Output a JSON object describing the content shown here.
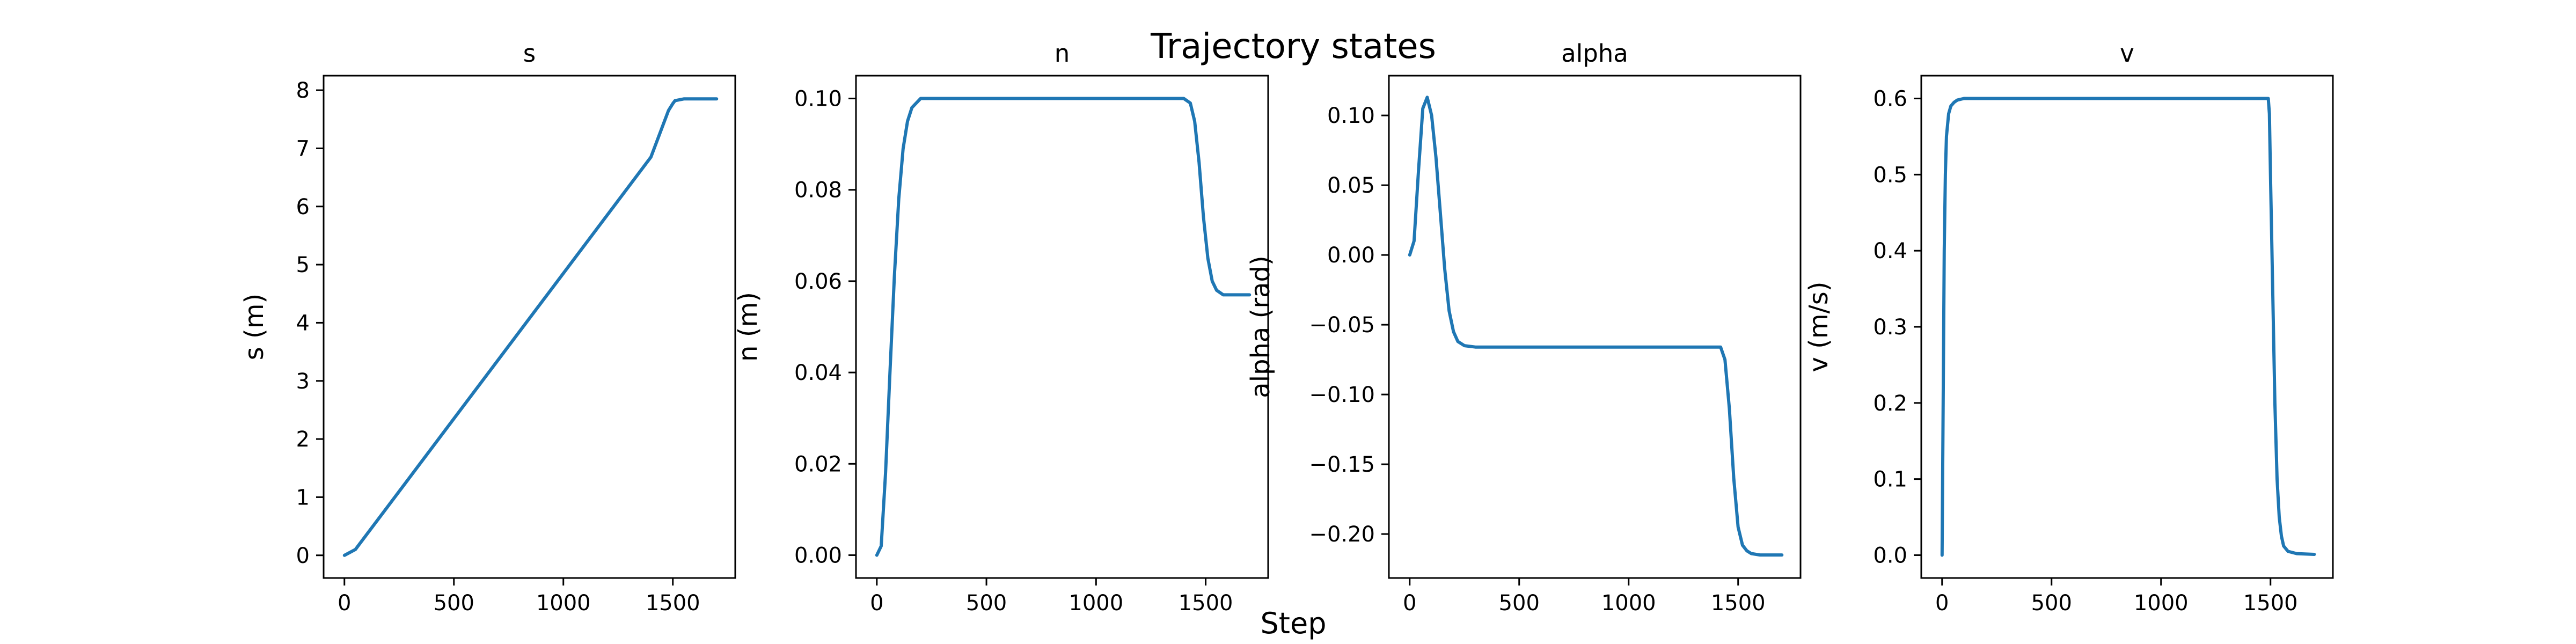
{
  "figure": {
    "suptitle": "Trajectory states",
    "supxlabel": "Step",
    "line_color": "#1f77b4"
  },
  "chart_data": [
    {
      "type": "line",
      "title": "s",
      "xlabel": "",
      "ylabel": "s (m)",
      "xlim": [
        -95,
        1785
      ],
      "ylim": [
        -0.39,
        8.25
      ],
      "xticks": [
        0,
        500,
        1000,
        1500
      ],
      "yticks": [
        0,
        1,
        2,
        3,
        4,
        5,
        6,
        7,
        8
      ],
      "grid": false,
      "x": [
        0,
        50,
        100,
        200,
        500,
        800,
        1100,
        1400,
        1480,
        1500,
        1510,
        1550,
        1600,
        1700
      ],
      "y": [
        0,
        0.1,
        0.35,
        0.85,
        2.35,
        3.85,
        5.35,
        6.85,
        7.65,
        7.77,
        7.82,
        7.85,
        7.85,
        7.85
      ]
    },
    {
      "type": "line",
      "title": "n",
      "xlabel": "",
      "ylabel": "n (m)",
      "xlim": [
        -95,
        1785
      ],
      "ylim": [
        -0.005,
        0.105
      ],
      "xticks": [
        0,
        500,
        1000,
        1500
      ],
      "yticks": [
        0.0,
        0.02,
        0.04,
        0.06,
        0.08,
        0.1
      ],
      "ytick_labels": [
        "0.00",
        "0.02",
        "0.04",
        "0.06",
        "0.08",
        "0.10"
      ],
      "grid": false,
      "x": [
        0,
        20,
        40,
        60,
        80,
        100,
        120,
        140,
        160,
        180,
        200,
        300,
        1000,
        1400,
        1430,
        1450,
        1470,
        1490,
        1510,
        1530,
        1550,
        1580,
        1620,
        1700
      ],
      "y": [
        0,
        0.002,
        0.018,
        0.04,
        0.061,
        0.078,
        0.089,
        0.095,
        0.098,
        0.099,
        0.1,
        0.1,
        0.1,
        0.1,
        0.099,
        0.095,
        0.086,
        0.074,
        0.065,
        0.06,
        0.058,
        0.057,
        0.057,
        0.057
      ]
    },
    {
      "type": "line",
      "title": "alpha",
      "xlabel": "",
      "ylabel": "alpha (rad)",
      "xlim": [
        -95,
        1785
      ],
      "ylim": [
        -0.2315,
        0.1285
      ],
      "xticks": [
        0,
        500,
        1000,
        1500
      ],
      "yticks": [
        -0.2,
        -0.15,
        -0.1,
        -0.05,
        0.0,
        0.05,
        0.1
      ],
      "ytick_labels": [
        "−0.20",
        "−0.15",
        "−0.10",
        "−0.05",
        "0.00",
        "0.05",
        "0.10"
      ],
      "grid": false,
      "x": [
        0,
        20,
        40,
        60,
        80,
        100,
        120,
        140,
        160,
        180,
        200,
        220,
        250,
        300,
        500,
        1000,
        1420,
        1440,
        1460,
        1480,
        1500,
        1520,
        1540,
        1560,
        1600,
        1700
      ],
      "y": [
        0,
        0.01,
        0.06,
        0.105,
        0.113,
        0.1,
        0.07,
        0.03,
        -0.01,
        -0.04,
        -0.055,
        -0.062,
        -0.065,
        -0.066,
        -0.066,
        -0.066,
        -0.066,
        -0.075,
        -0.11,
        -0.16,
        -0.195,
        -0.208,
        -0.212,
        -0.214,
        -0.215,
        -0.215
      ]
    },
    {
      "type": "line",
      "title": "v",
      "xlabel": "",
      "ylabel": "v (m/s)",
      "xlim": [
        -95,
        1785
      ],
      "ylim": [
        -0.03,
        0.63
      ],
      "xticks": [
        0,
        500,
        1000,
        1500
      ],
      "yticks": [
        0.0,
        0.1,
        0.2,
        0.3,
        0.4,
        0.5,
        0.6
      ],
      "ytick_labels": [
        "0.0",
        "0.1",
        "0.2",
        "0.3",
        "0.4",
        "0.5",
        "0.6"
      ],
      "grid": false,
      "x": [
        0,
        5,
        10,
        15,
        20,
        30,
        40,
        55,
        70,
        100,
        1490,
        1495,
        1500,
        1510,
        1520,
        1530,
        1540,
        1550,
        1560,
        1580,
        1620,
        1700
      ],
      "y": [
        0,
        0.2,
        0.4,
        0.5,
        0.55,
        0.58,
        0.59,
        0.595,
        0.598,
        0.6,
        0.6,
        0.58,
        0.5,
        0.35,
        0.2,
        0.1,
        0.05,
        0.025,
        0.012,
        0.005,
        0.002,
        0.001
      ]
    }
  ]
}
